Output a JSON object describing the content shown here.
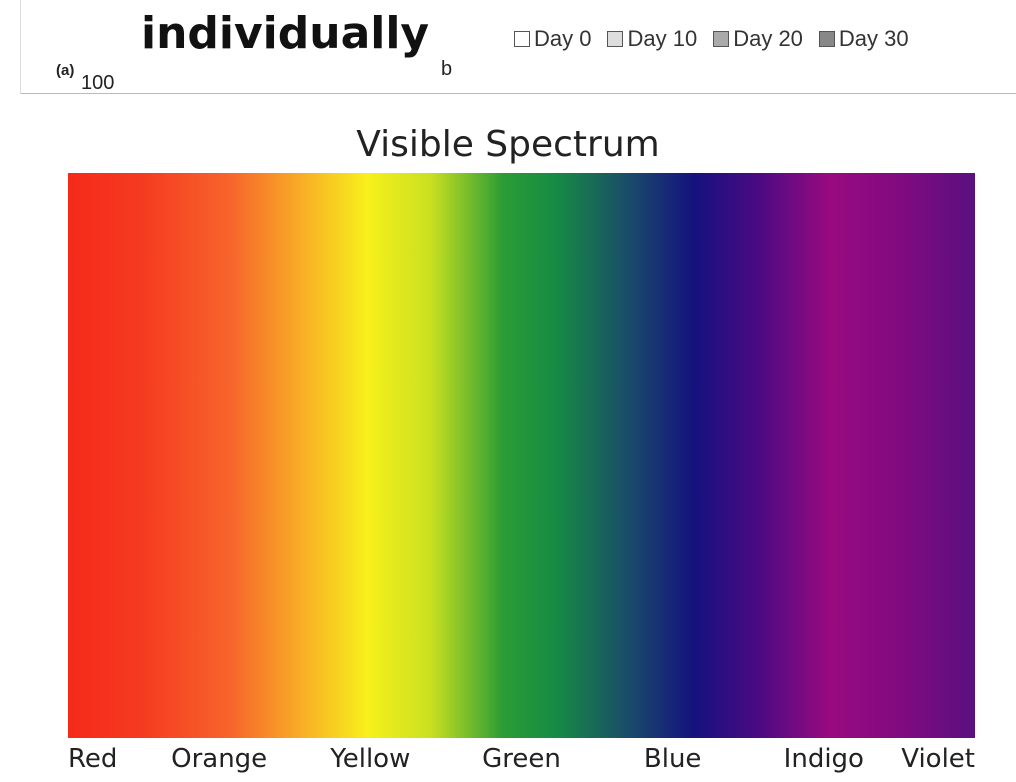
{
  "header": {
    "title": "individually",
    "panel_label": "(a)",
    "axis_value": "100",
    "panel_b": "b",
    "legend": [
      "Day 0",
      "Day 10",
      "Day 20",
      "Day 30"
    ]
  },
  "spectrum": {
    "title": "Visible Spectrum",
    "labels": [
      "Red",
      "Orange",
      "Yellow",
      "Green",
      "Blue",
      "Indigo",
      "Violet"
    ]
  }
}
